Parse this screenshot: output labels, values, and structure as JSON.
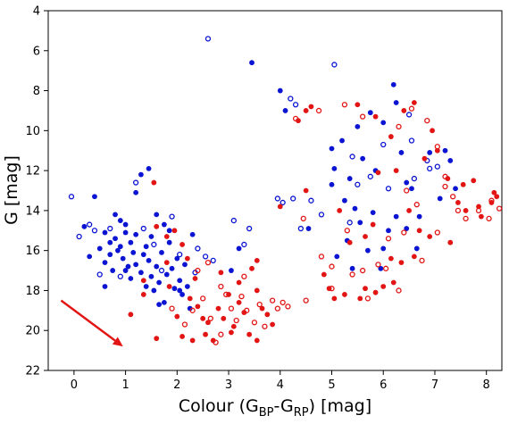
{
  "chart_data": {
    "type": "scatter",
    "title": "",
    "xlabel_parts": [
      "Colour (G",
      "BP",
      "-G",
      "RP",
      ") [mag]"
    ],
    "ylabel": "G [mag]",
    "xlim": [
      -0.5,
      8.3
    ],
    "ylim": [
      22,
      4
    ],
    "y_inverted": true,
    "xticks": [
      0,
      1,
      2,
      3,
      4,
      5,
      6,
      7,
      8
    ],
    "yticks": [
      4,
      6,
      8,
      10,
      12,
      14,
      16,
      18,
      20,
      22
    ],
    "grid": false,
    "legend": "none",
    "colors": {
      "blue": "#0a14d2",
      "red": "#e21414",
      "arrow": "#e21414"
    },
    "arrow": {
      "from": [
        -0.25,
        18.5
      ],
      "to": [
        0.95,
        20.8
      ]
    },
    "series": [
      {
        "color": "blue",
        "filled": true,
        "points": [
          [
            0.3,
            16.3
          ],
          [
            0.5,
            15.9
          ],
          [
            0.6,
            16.6
          ],
          [
            0.6,
            15.1
          ],
          [
            0.7,
            15.6
          ],
          [
            0.7,
            16.2
          ],
          [
            0.75,
            17.0
          ],
          [
            0.8,
            15.4
          ],
          [
            0.85,
            16.0
          ],
          [
            0.9,
            14.5
          ],
          [
            0.9,
            15.8
          ],
          [
            0.95,
            16.4
          ],
          [
            1.0,
            15.1
          ],
          [
            1.0,
            17.0
          ],
          [
            1.05,
            16.8
          ],
          [
            1.1,
            17.4
          ],
          [
            1.1,
            15.6
          ],
          [
            1.15,
            16.1
          ],
          [
            1.2,
            15.2
          ],
          [
            1.2,
            16.7
          ],
          [
            1.3,
            17.1
          ],
          [
            1.35,
            16.2
          ],
          [
            1.4,
            15.8
          ],
          [
            1.4,
            17.8
          ],
          [
            1.45,
            16.5
          ],
          [
            1.5,
            15.3
          ],
          [
            1.5,
            17.3
          ],
          [
            1.55,
            18.0
          ],
          [
            1.6,
            16.8
          ],
          [
            1.6,
            14.2
          ],
          [
            1.65,
            17.6
          ],
          [
            1.7,
            16.1
          ],
          [
            1.75,
            18.6
          ],
          [
            1.8,
            17.2
          ],
          [
            1.85,
            15.0
          ],
          [
            1.9,
            16.9
          ],
          [
            1.95,
            17.9
          ],
          [
            2.0,
            16.4
          ],
          [
            2.05,
            17.5
          ],
          [
            2.1,
            18.2
          ],
          [
            2.15,
            16.7
          ],
          [
            2.2,
            17.8
          ],
          [
            2.3,
            15.2
          ],
          [
            2.25,
            18.9
          ],
          [
            3.05,
            17.0
          ],
          [
            3.2,
            15.9
          ],
          [
            0.4,
            13.3
          ],
          [
            1.2,
            13.1
          ],
          [
            1.3,
            12.2
          ],
          [
            1.45,
            11.9
          ],
          [
            1.0,
            14.7
          ],
          [
            0.8,
            14.2
          ],
          [
            0.2,
            14.8
          ],
          [
            1.75,
            14.7
          ],
          [
            1.85,
            15.6
          ],
          [
            0.6,
            17.8
          ],
          [
            1.65,
            18.7
          ],
          [
            2.05,
            18.0
          ],
          [
            3.45,
            6.6
          ],
          [
            4.0,
            8.0
          ],
          [
            4.1,
            9.0
          ],
          [
            4.55,
            14.9
          ],
          [
            5.05,
            11.9
          ],
          [
            5.2,
            10.5
          ],
          [
            5.35,
            12.4
          ],
          [
            5.5,
            9.8
          ],
          [
            5.6,
            11.4
          ],
          [
            5.75,
            9.1
          ],
          [
            5.85,
            12.0
          ],
          [
            6.0,
            9.6
          ],
          [
            6.2,
            7.7
          ],
          [
            6.35,
            11.1
          ],
          [
            6.45,
            12.6
          ],
          [
            6.9,
            11.1
          ],
          [
            6.25,
            8.6
          ],
          [
            5.45,
            13.9
          ],
          [
            5.55,
            14.6
          ],
          [
            5.8,
            14.1
          ],
          [
            6.0,
            15.9
          ],
          [
            5.95,
            16.9
          ],
          [
            6.1,
            15.0
          ],
          [
            6.25,
            14.3
          ],
          [
            6.55,
            12.9
          ],
          [
            7.2,
            11.0
          ],
          [
            7.3,
            11.5
          ],
          [
            7.1,
            13.4
          ],
          [
            6.7,
            14.3
          ],
          [
            5.3,
            15.5
          ],
          [
            5.1,
            16.3
          ],
          [
            5.4,
            16.9
          ],
          [
            5.7,
            16.0
          ],
          [
            6.45,
            14.9
          ],
          [
            7.4,
            12.9
          ],
          [
            5.0,
            12.7
          ],
          [
            5.25,
            13.5
          ],
          [
            6.65,
            15.9
          ],
          [
            5.0,
            10.9
          ]
        ]
      },
      {
        "color": "blue",
        "filled": false,
        "points": [
          [
            -0.05,
            13.3
          ],
          [
            0.3,
            14.7
          ],
          [
            0.1,
            15.3
          ],
          [
            0.4,
            15.0
          ],
          [
            0.5,
            17.2
          ],
          [
            0.7,
            14.9
          ],
          [
            0.9,
            17.3
          ],
          [
            1.2,
            12.6
          ],
          [
            1.35,
            14.9
          ],
          [
            1.55,
            15.7
          ],
          [
            1.7,
            17.0
          ],
          [
            1.9,
            14.3
          ],
          [
            2.05,
            16.2
          ],
          [
            2.35,
            17.1
          ],
          [
            2.4,
            15.9
          ],
          [
            2.55,
            16.3
          ],
          [
            2.7,
            16.5
          ],
          [
            3.1,
            14.5
          ],
          [
            3.3,
            15.7
          ],
          [
            3.4,
            14.9
          ],
          [
            2.6,
            5.4
          ],
          [
            3.95,
            13.4
          ],
          [
            4.05,
            13.6
          ],
          [
            4.25,
            13.4
          ],
          [
            4.2,
            8.4
          ],
          [
            4.3,
            8.7
          ],
          [
            4.6,
            13.5
          ],
          [
            4.8,
            14.2
          ],
          [
            5.05,
            6.7
          ],
          [
            5.4,
            11.3
          ],
          [
            5.5,
            12.7
          ],
          [
            6.1,
            12.9
          ],
          [
            6.5,
            9.2
          ],
          [
            6.55,
            10.5
          ],
          [
            6.6,
            12.4
          ],
          [
            6.9,
            11.9
          ],
          [
            7.05,
            11.8
          ],
          [
            6.85,
            11.5
          ],
          [
            4.4,
            14.9
          ],
          [
            5.35,
            14.6
          ],
          [
            6.0,
            10.7
          ],
          [
            5.75,
            12.3
          ]
        ]
      },
      {
        "color": "red",
        "filled": true,
        "points": [
          [
            1.55,
            12.6
          ],
          [
            1.6,
            14.8
          ],
          [
            1.8,
            15.3
          ],
          [
            1.95,
            15.0
          ],
          [
            2.1,
            15.7
          ],
          [
            2.2,
            16.4
          ],
          [
            2.25,
            18.4
          ],
          [
            2.35,
            17.4
          ],
          [
            2.4,
            18.8
          ],
          [
            2.5,
            19.4
          ],
          [
            2.55,
            20.2
          ],
          [
            2.6,
            19.6
          ],
          [
            2.7,
            20.5
          ],
          [
            2.8,
            18.9
          ],
          [
            2.9,
            19.4
          ],
          [
            3.0,
            18.2
          ],
          [
            3.1,
            19.8
          ],
          [
            3.2,
            18.6
          ],
          [
            3.3,
            19.1
          ],
          [
            3.4,
            20.2
          ],
          [
            3.45,
            16.9
          ],
          [
            3.55,
            18.0
          ],
          [
            3.65,
            18.9
          ],
          [
            3.75,
            19.2
          ],
          [
            3.85,
            19.7
          ],
          [
            3.55,
            20.5
          ],
          [
            1.6,
            20.4
          ],
          [
            2.1,
            20.3
          ],
          [
            2.3,
            20.5
          ],
          [
            2.85,
            17.1
          ],
          [
            3.2,
            17.6
          ],
          [
            3.55,
            16.5
          ],
          [
            1.1,
            19.2
          ],
          [
            1.35,
            18.2
          ],
          [
            1.85,
            17.8
          ],
          [
            2.0,
            19.3
          ],
          [
            4.0,
            13.8
          ],
          [
            4.35,
            9.5
          ],
          [
            4.5,
            9.0
          ],
          [
            4.6,
            8.8
          ],
          [
            5.5,
            8.7
          ],
          [
            5.85,
            9.3
          ],
          [
            6.15,
            10.3
          ],
          [
            6.4,
            9.0
          ],
          [
            6.6,
            8.6
          ],
          [
            6.95,
            10.0
          ],
          [
            7.05,
            11.0
          ],
          [
            6.8,
            11.4
          ],
          [
            7.25,
            12.4
          ],
          [
            7.55,
            12.7
          ],
          [
            7.75,
            12.5
          ],
          [
            7.85,
            13.8
          ],
          [
            7.9,
            14.3
          ],
          [
            8.1,
            13.6
          ],
          [
            8.2,
            13.3
          ],
          [
            8.15,
            13.1
          ],
          [
            6.5,
            14.0
          ],
          [
            6.7,
            15.0
          ],
          [
            6.9,
            15.3
          ],
          [
            6.15,
            16.4
          ],
          [
            6.35,
            16.6
          ],
          [
            6.0,
            17.8
          ],
          [
            5.85,
            18.1
          ],
          [
            5.65,
            17.9
          ],
          [
            6.2,
            17.6
          ],
          [
            6.6,
            16.3
          ],
          [
            7.3,
            15.6
          ],
          [
            7.45,
            13.6
          ],
          [
            5.15,
            14.0
          ],
          [
            5.35,
            15.6
          ],
          [
            5.8,
            14.7
          ],
          [
            5.65,
            15.3
          ],
          [
            4.85,
            17.2
          ],
          [
            4.95,
            17.9
          ],
          [
            5.25,
            18.2
          ],
          [
            5.55,
            18.4
          ],
          [
            5.05,
            18.4
          ],
          [
            4.5,
            13.0
          ],
          [
            5.9,
            12.1
          ],
          [
            6.25,
            12.0
          ],
          [
            7.6,
            14.0
          ],
          [
            1.35,
            17.5
          ],
          [
            1.8,
            16.6
          ],
          [
            3.05,
            20.1
          ]
        ]
      },
      {
        "color": "red",
        "filled": false,
        "points": [
          [
            1.9,
            18.9
          ],
          [
            2.15,
            19.7
          ],
          [
            2.3,
            19.0
          ],
          [
            2.5,
            18.4
          ],
          [
            2.65,
            19.4
          ],
          [
            2.75,
            20.6
          ],
          [
            2.85,
            20.2
          ],
          [
            2.95,
            18.2
          ],
          [
            3.05,
            18.9
          ],
          [
            3.15,
            19.5
          ],
          [
            3.25,
            18.3
          ],
          [
            3.35,
            19.0
          ],
          [
            3.5,
            19.6
          ],
          [
            3.6,
            18.7
          ],
          [
            3.7,
            19.8
          ],
          [
            3.85,
            18.5
          ],
          [
            3.95,
            18.9
          ],
          [
            4.05,
            18.6
          ],
          [
            4.15,
            18.8
          ],
          [
            2.85,
            17.8
          ],
          [
            3.3,
            17.3
          ],
          [
            2.4,
            17.0
          ],
          [
            2.6,
            16.6
          ],
          [
            4.3,
            9.4
          ],
          [
            4.75,
            9.0
          ],
          [
            5.25,
            8.7
          ],
          [
            5.6,
            9.3
          ],
          [
            6.3,
            9.8
          ],
          [
            6.55,
            8.9
          ],
          [
            6.85,
            9.5
          ],
          [
            7.05,
            10.8
          ],
          [
            7.2,
            12.8
          ],
          [
            7.45,
            14.0
          ],
          [
            7.6,
            14.4
          ],
          [
            7.85,
            14.0
          ],
          [
            8.05,
            14.4
          ],
          [
            8.1,
            13.5
          ],
          [
            8.25,
            13.9
          ],
          [
            4.45,
            14.4
          ],
          [
            4.8,
            16.3
          ],
          [
            5.0,
            16.8
          ],
          [
            5.4,
            17.2
          ],
          [
            5.6,
            17.0
          ],
          [
            5.9,
            16.7
          ],
          [
            6.1,
            15.4
          ],
          [
            6.4,
            15.1
          ],
          [
            6.75,
            16.5
          ],
          [
            7.05,
            15.1
          ],
          [
            7.35,
            13.3
          ],
          [
            6.45,
            13.0
          ],
          [
            5.0,
            17.9
          ],
          [
            4.5,
            18.5
          ],
          [
            6.05,
            16.9
          ],
          [
            5.7,
            18.4
          ],
          [
            6.3,
            18.0
          ],
          [
            6.65,
            13.7
          ],
          [
            7.2,
            12.3
          ],
          [
            5.3,
            15.0
          ]
        ]
      }
    ]
  }
}
